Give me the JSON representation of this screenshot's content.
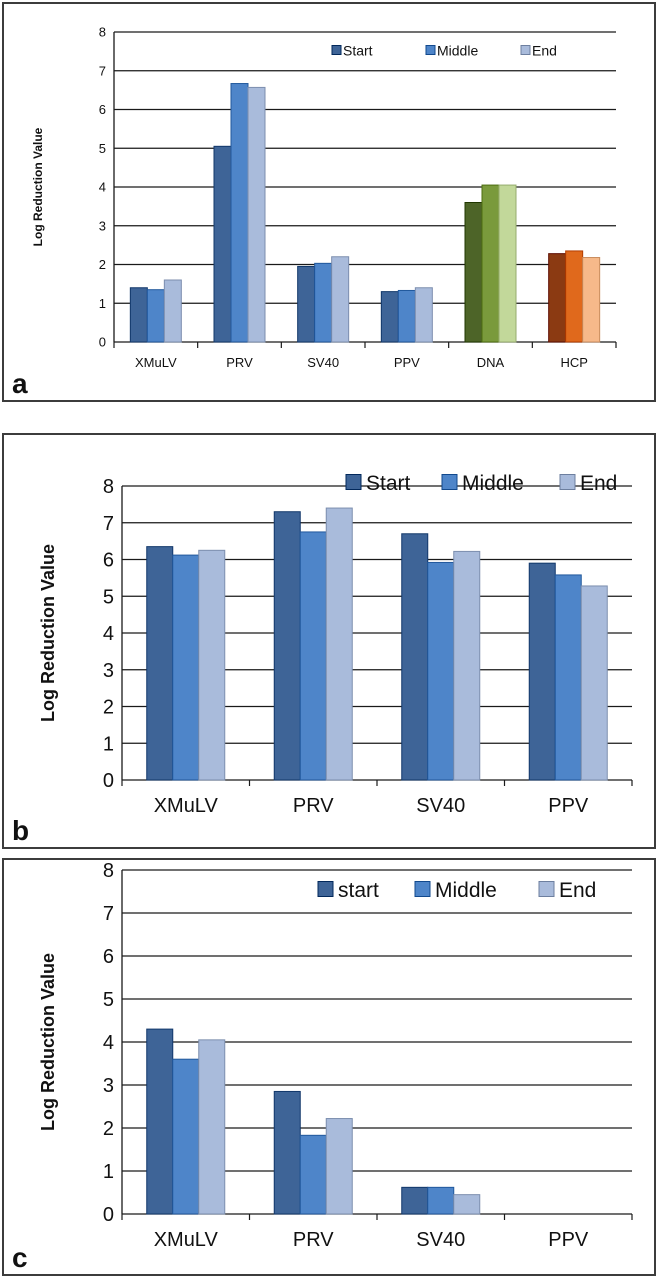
{
  "colors": {
    "start": "#3e6497",
    "middle": "#4e85c9",
    "end": "#a9bbdb",
    "dna_start": "#4d6428",
    "dna_middle": "#7a9a3c",
    "dna_end": "#c2d89a",
    "hcp_start": "#8b3a12",
    "hcp_middle": "#e0691c",
    "hcp_end": "#f6b98a"
  },
  "chart_data": [
    {
      "panel": "a",
      "type": "bar",
      "ylabel": "Log Reduction Value",
      "ylim": [
        0,
        8
      ],
      "yticks": [
        "0",
        "1",
        "2",
        "3",
        "4",
        "5",
        "6",
        "7",
        "8"
      ],
      "grid": true,
      "legend_position": "top-right",
      "categories": [
        "XMuLV",
        "PRV",
        "SV40",
        "PPV",
        "DNA",
        "HCP"
      ],
      "series": [
        {
          "name": "Start",
          "values": [
            1.4,
            5.05,
            1.95,
            1.3,
            3.6,
            2.28
          ]
        },
        {
          "name": "Middle",
          "values": [
            1.35,
            6.67,
            2.03,
            1.33,
            4.05,
            2.35
          ]
        },
        {
          "name": "End",
          "values": [
            1.6,
            6.57,
            2.2,
            1.4,
            4.05,
            2.18
          ]
        }
      ]
    },
    {
      "panel": "b",
      "type": "bar",
      "ylabel": "Log Reduction Value",
      "ylim": [
        0,
        8
      ],
      "yticks": [
        "0",
        "1",
        "2",
        "3",
        "4",
        "5",
        "6",
        "7",
        "8"
      ],
      "grid": true,
      "legend_position": "top-right",
      "categories": [
        "XMuLV",
        "PRV",
        "SV40",
        "PPV"
      ],
      "series": [
        {
          "name": "Start",
          "values": [
            6.35,
            7.3,
            6.7,
            5.9
          ]
        },
        {
          "name": "Middle",
          "values": [
            6.12,
            6.75,
            5.92,
            5.58
          ]
        },
        {
          "name": "End",
          "values": [
            6.25,
            7.4,
            6.22,
            5.28
          ]
        }
      ]
    },
    {
      "panel": "c",
      "type": "bar",
      "ylabel": "Log Reduction Value",
      "ylim": [
        0,
        8
      ],
      "yticks": [
        "0",
        "1",
        "2",
        "3",
        "4",
        "5",
        "6",
        "7",
        "8"
      ],
      "grid": true,
      "legend_position": "top-right",
      "categories": [
        "XMuLV",
        "PRV",
        "SV40",
        "PPV"
      ],
      "series": [
        {
          "name": "start",
          "values": [
            4.3,
            2.85,
            0.62,
            0
          ]
        },
        {
          "name": "Middle",
          "values": [
            3.6,
            1.83,
            0.62,
            0
          ]
        },
        {
          "name": "End",
          "values": [
            4.05,
            2.22,
            0.45,
            0
          ]
        }
      ]
    }
  ],
  "panels": {
    "a": {
      "letter": "a"
    },
    "b": {
      "letter": "b"
    },
    "c": {
      "letter": "c"
    }
  }
}
